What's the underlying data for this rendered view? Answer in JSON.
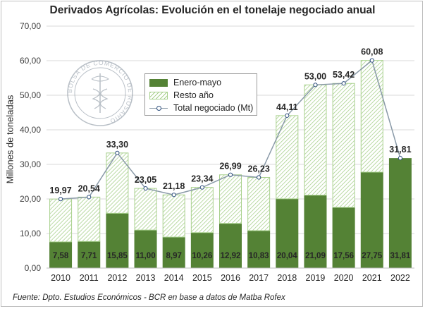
{
  "chart_data": {
    "type": "bar",
    "title": "Derivados Agrícolas: Evolución en el tonelaje negociado anual",
    "ylabel": "Millones de toneladas",
    "source": "Fuente: Dpto. Estudios Económicos - BCR en base a datos de Matba Rofex",
    "ylim": [
      0,
      70
    ],
    "yticks": [
      "0,00",
      "10,00",
      "20,00",
      "30,00",
      "40,00",
      "50,00",
      "60,00",
      "70,00"
    ],
    "grid": true,
    "legend_position": "top-left",
    "categories": [
      "2010",
      "2011",
      "2012",
      "2013",
      "2014",
      "2015",
      "2016",
      "2017",
      "2018",
      "2019",
      "2020",
      "2021",
      "2022"
    ],
    "series": [
      {
        "name": "Enero-mayo",
        "values": [
          7.58,
          7.71,
          15.85,
          11.0,
          8.97,
          10.26,
          12.92,
          10.83,
          20.04,
          21.09,
          17.56,
          27.75,
          31.81
        ],
        "labels": [
          "7,58",
          "7,71",
          "15,85",
          "11,00",
          "8,97",
          "10,26",
          "12,92",
          "10,83",
          "20,04",
          "21,09",
          "17,56",
          "27,75",
          "31,81"
        ],
        "color": "#548235"
      },
      {
        "name": "Resto año",
        "values": [
          12.39,
          12.83,
          17.45,
          12.05,
          12.21,
          13.08,
          14.07,
          15.4,
          24.07,
          31.91,
          35.86,
          32.33,
          0
        ],
        "color": "#a9d18e"
      },
      {
        "name": "Total negociado (Mt)",
        "type": "line",
        "values": [
          19.97,
          20.54,
          33.3,
          23.05,
          21.18,
          23.34,
          26.99,
          26.23,
          44.11,
          53.0,
          53.42,
          60.08,
          31.81
        ],
        "labels": [
          "19,97",
          "20,54",
          "33,30",
          "23,05",
          "21,18",
          "23,34",
          "26,99",
          "26,23",
          "44,11",
          "53,00",
          "53,42",
          "60,08",
          "31,81"
        ],
        "color": "#8a9aa8"
      }
    ],
    "watermark": {
      "text": "BOLSA DE COMERCIO DE ROSARIO"
    }
  }
}
